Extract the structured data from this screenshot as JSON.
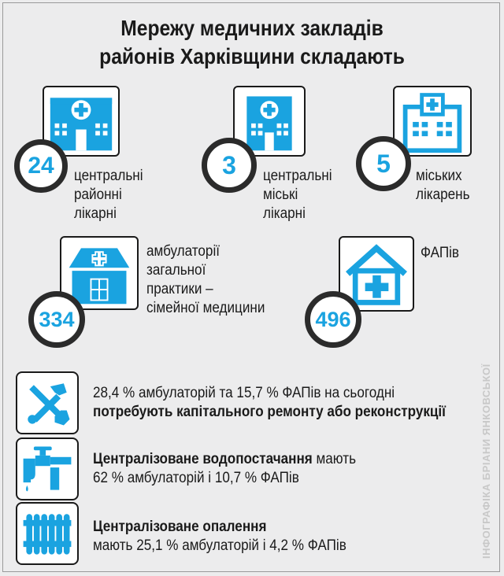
{
  "title": {
    "line1": "Мережу медичних закладів",
    "line2": "районів Харківщини складають"
  },
  "stats": [
    {
      "number": "24",
      "lines": [
        "центральні",
        "районні",
        "лікарні"
      ],
      "icon": "central-district-hospital-icon"
    },
    {
      "number": "3",
      "lines": [
        "центральні",
        "міські",
        "лікарні"
      ],
      "icon": "city-hospital-icon"
    },
    {
      "number": "5",
      "lines": [
        "міських",
        "лікарень"
      ],
      "icon": "hospital-icon"
    },
    {
      "number": "334",
      "lines": [
        "амбулаторії",
        "загальної",
        "практики –",
        "сімейної медицини"
      ],
      "icon": "clinic-icon"
    },
    {
      "number": "496",
      "lines": [
        "ФАПів"
      ],
      "icon": "house-medical-icon"
    }
  ],
  "facts": [
    {
      "icon": "tools-icon",
      "line1_plain": "28,4 % амбулаторій та 15,7 % ФАПів на сьогодні",
      "line2_bold": "потребують капітального ремонту або реконструкції"
    },
    {
      "icon": "water-tap-icon",
      "line1_bold": "Централізоване водопостачання",
      "line1_plain": " мають",
      "line2_plain": "62 % амбулаторій і 10,7 % ФАПів"
    },
    {
      "icon": "radiator-icon",
      "line1_bold": "Централізоване опалення",
      "line2_plain": "мають 25,1 % амбулаторій і 4,2 % ФАПів"
    }
  ],
  "credit": "ІНФОГРАФІКА БРІАНИ ЯНКОВСЬКОЇ",
  "colors": {
    "accent": "#1aa3e0",
    "dark": "#2b2b2b",
    "background": "#ececed"
  }
}
